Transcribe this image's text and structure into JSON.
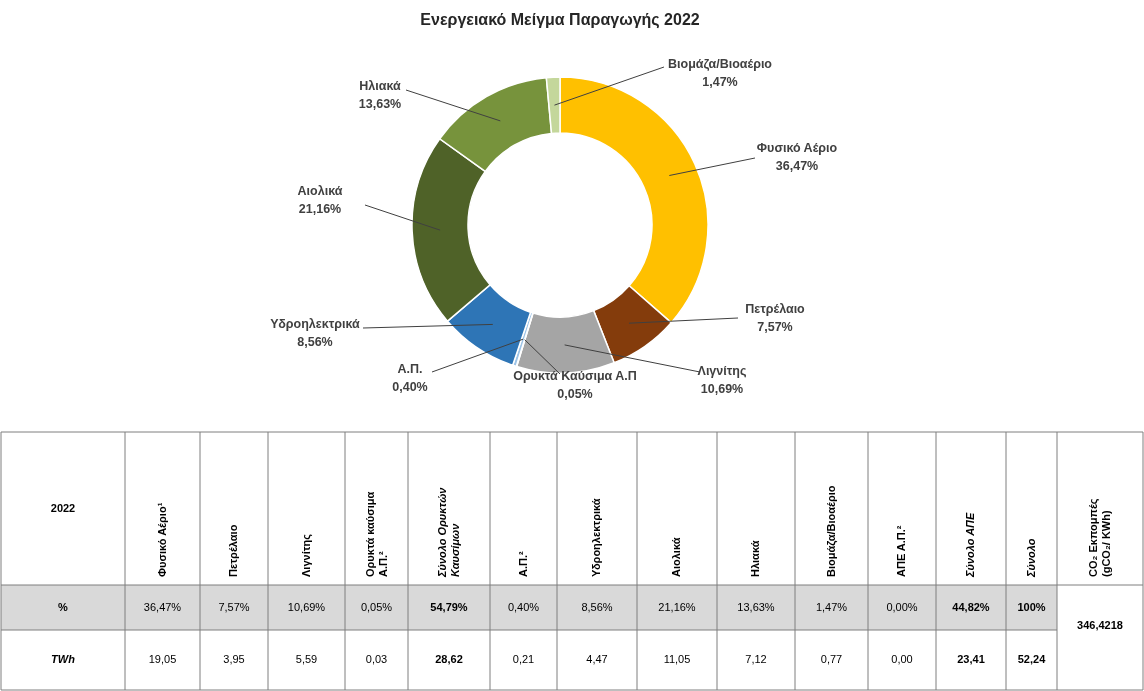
{
  "chart_data": [
    {
      "type": "donut",
      "title": "Ενεργειακό Μείγμα Παραγωγής 2022",
      "categories": [
        "Φυσικό Αέριο",
        "Πετρέλαιο",
        "Λιγνίτης",
        "Ορυκτά Καύσιμα Α.Π",
        "Α.Π.",
        "Υδροηλεκτρικά",
        "Αιολικά",
        "Ηλιακά",
        "Βιομάζα/Βιοαέριο"
      ],
      "values": [
        36.47,
        7.57,
        10.69,
        0.05,
        0.4,
        8.56,
        21.16,
        13.63,
        1.47
      ],
      "value_labels": [
        "36,47%",
        "7,57%",
        "10,69%",
        "0,05%",
        "0,40%",
        "8,56%",
        "21,16%",
        "13,63%",
        "1,47%"
      ],
      "colors": [
        "#ffc000",
        "#843c0c",
        "#a5a5a5",
        "#c5e0b4",
        "#9dc3e6",
        "#2e75b6",
        "#4f6228",
        "#77933c",
        "#c4d79b"
      ],
      "legend": false
    },
    {
      "type": "other",
      "categories": [
        "Φυσικό Αέριο¹",
        "Πετρέλαιο",
        "Λιγνίτης",
        "Ορυκτά καύσιμα\nΑ.Π.²",
        "Σύνολο  Ορυκτών\nΚαυσίμων",
        "Α.Π.²",
        "Υδροηλεκτρικά",
        "Αιολικά",
        "Ηλιακά",
        "Βιομάζα/Βιοαέριο",
        "ΑΠΕ Α.Π.²",
        "Σύνολο ΑΠΕ",
        "Σύνολο"
      ],
      "y_categories": [
        "%",
        "TWh"
      ],
      "cell_labels": [
        [
          "36,47%",
          "7,57%",
          "10,69%",
          "0,05%",
          "54,79%",
          "0,40%",
          "8,56%",
          "21,16%",
          "13,63%",
          "1,47%",
          "0,00%",
          "44,82%",
          "100%"
        ],
        [
          "19,05",
          "3,95",
          "5,59",
          "0,03",
          "28,62",
          "0,21",
          "4,47",
          "11,05",
          "7,12",
          "0,77",
          "0,00",
          "23,41",
          "52,24"
        ]
      ],
      "annotations": [
        "2022",
        "CO₂ Εκπομπές\n(gCO₂/ KWh)",
        "346,4218"
      ]
    }
  ]
}
